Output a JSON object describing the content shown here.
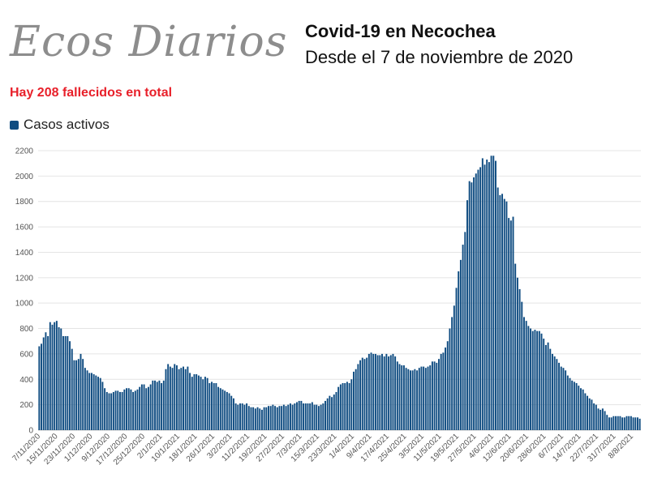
{
  "brand": {
    "logo_text": "Ecos Diarios"
  },
  "header": {
    "title": "Covid-19 en Necochea",
    "subtitle": "Desde el 7 de noviembre de 2020"
  },
  "note": "Hay 208 fallecidos en total",
  "legend": {
    "label": "Casos activos",
    "color": "#0f4c81"
  },
  "chart_data": {
    "type": "bar",
    "ylim": [
      0,
      2200
    ],
    "yticks": [
      0,
      200,
      400,
      600,
      800,
      1000,
      1200,
      1400,
      1600,
      1800,
      2000,
      2200
    ],
    "grid": true,
    "legend_position": "top-left",
    "xtick_labels": [
      "7/11/2020",
      "15/11/2020",
      "23/11/2020",
      "1/12/2020",
      "9/12/2020",
      "17/12/2020",
      "25/12/2020",
      "2/1/2021",
      "10/1/2021",
      "18/1/2021",
      "26/1/2021",
      "3/2/2021",
      "11/2/2021",
      "19/2/2021",
      "27/2/2021",
      "7/3/2021",
      "15/3/2021",
      "23/3/2021",
      "1/4/2021",
      "9/4/2021",
      "17/4/2021",
      "25/4/2021",
      "3/5/2021",
      "11/5/2021",
      "19/5/2021",
      "27/5/2021",
      "4/6/2021",
      "12/6/2021",
      "20/6/2021",
      "28/6/2021",
      "6/7/2021",
      "14/7/2021",
      "22/7/2021",
      "31/7/2021",
      "8/8/2021"
    ],
    "series": [
      {
        "name": "Casos activos",
        "color": "#0f4c81",
        "values": [
          660,
          680,
          730,
          770,
          740,
          850,
          830,
          850,
          860,
          810,
          800,
          740,
          740,
          740,
          700,
          640,
          550,
          550,
          560,
          600,
          560,
          490,
          470,
          450,
          450,
          440,
          430,
          420,
          410,
          380,
          330,
          300,
          290,
          290,
          300,
          310,
          310,
          300,
          300,
          320,
          330,
          330,
          320,
          300,
          310,
          320,
          340,
          360,
          360,
          330,
          340,
          360,
          390,
          390,
          380,
          390,
          370,
          390,
          480,
          520,
          500,
          490,
          520,
          510,
          480,
          490,
          500,
          480,
          500,
          450,
          420,
          440,
          440,
          430,
          420,
          400,
          420,
          410,
          370,
          380,
          370,
          370,
          340,
          330,
          320,
          310,
          300,
          290,
          270,
          250,
          210,
          200,
          210,
          210,
          200,
          210,
          190,
          180,
          180,
          170,
          180,
          170,
          160,
          180,
          180,
          190,
          190,
          200,
          190,
          180,
          190,
          190,
          200,
          190,
          200,
          210,
          200,
          210,
          220,
          230,
          230,
          210,
          210,
          210,
          210,
          220,
          200,
          200,
          190,
          200,
          210,
          230,
          250,
          270,
          260,
          280,
          300,
          340,
          360,
          370,
          370,
          380,
          370,
          400,
          460,
          480,
          520,
          550,
          570,
          560,
          570,
          600,
          610,
          600,
          600,
          590,
          590,
          600,
          580,
          600,
          580,
          590,
          600,
          580,
          540,
          520,
          510,
          510,
          490,
          480,
          470,
          470,
          480,
          470,
          490,
          500,
          500,
          490,
          500,
          510,
          540,
          540,
          530,
          560,
          600,
          610,
          650,
          700,
          800,
          890,
          980,
          1120,
          1250,
          1340,
          1460,
          1560,
          1810,
          1960,
          1950,
          1990,
          2020,
          2050,
          2070,
          2140,
          2090,
          2130,
          2110,
          2160,
          2160,
          2120,
          1910,
          1850,
          1860,
          1820,
          1800,
          1670,
          1650,
          1680,
          1310,
          1200,
          1110,
          1010,
          890,
          860,
          820,
          800,
          780,
          790,
          780,
          780,
          760,
          720,
          670,
          690,
          640,
          600,
          580,
          560,
          530,
          500,
          490,
          470,
          430,
          410,
          390,
          380,
          370,
          350,
          330,
          320,
          290,
          270,
          250,
          240,
          210,
          200,
          170,
          160,
          170,
          150,
          120,
          100,
          100,
          110,
          110,
          110,
          110,
          100,
          100,
          110,
          110,
          110,
          100,
          100,
          100,
          90
        ]
      }
    ]
  }
}
